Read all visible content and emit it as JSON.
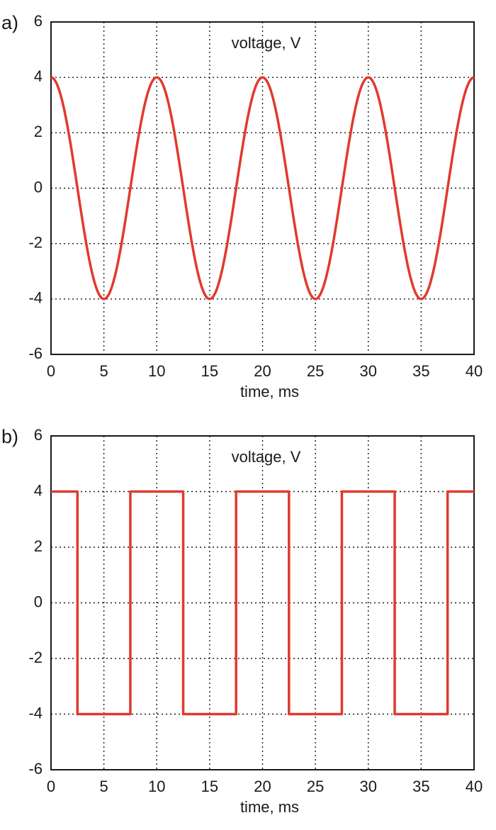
{
  "chart_data": [
    {
      "panel_label": "a)",
      "type": "line",
      "inner_label": "voltage, V",
      "xlabel": "time, ms",
      "ylabel": "",
      "xlim": [
        0,
        40
      ],
      "ylim": [
        -6,
        6
      ],
      "xticks": [
        0,
        5,
        10,
        15,
        20,
        25,
        30,
        35,
        40
      ],
      "yticks": [
        6,
        4,
        2,
        0,
        -2,
        -4,
        -6
      ],
      "grid": true,
      "series": [
        {
          "kind": "sine",
          "color": "#e03a2f",
          "amplitude": 4,
          "period_ms": 10,
          "x": [
            0,
            5,
            10,
            15,
            20,
            25,
            30,
            35,
            40
          ],
          "y": [
            4,
            -4,
            4,
            -4,
            4,
            -4,
            4,
            -4,
            4
          ]
        }
      ]
    },
    {
      "panel_label": "b)",
      "type": "line",
      "inner_label": "voltage, V",
      "xlabel": "time, ms",
      "ylabel": "",
      "xlim": [
        0,
        40
      ],
      "ylim": [
        -6,
        6
      ],
      "xticks": [
        0,
        5,
        10,
        15,
        20,
        25,
        30,
        35,
        40
      ],
      "yticks": [
        6,
        4,
        2,
        0,
        -2,
        -4,
        -6
      ],
      "grid": true,
      "series": [
        {
          "kind": "square",
          "color": "#e03a2f",
          "amplitude": 4,
          "period_ms": 10,
          "x": [
            0,
            2.5,
            2.5,
            7.5,
            7.5,
            12.5,
            12.5,
            17.5,
            17.5,
            22.5,
            22.5,
            27.5,
            27.5,
            32.5,
            32.5,
            37.5,
            37.5,
            40
          ],
          "y": [
            4,
            4,
            -4,
            -4,
            4,
            4,
            -4,
            -4,
            4,
            4,
            -4,
            -4,
            4,
            4,
            -4,
            -4,
            4,
            4
          ]
        }
      ]
    }
  ]
}
